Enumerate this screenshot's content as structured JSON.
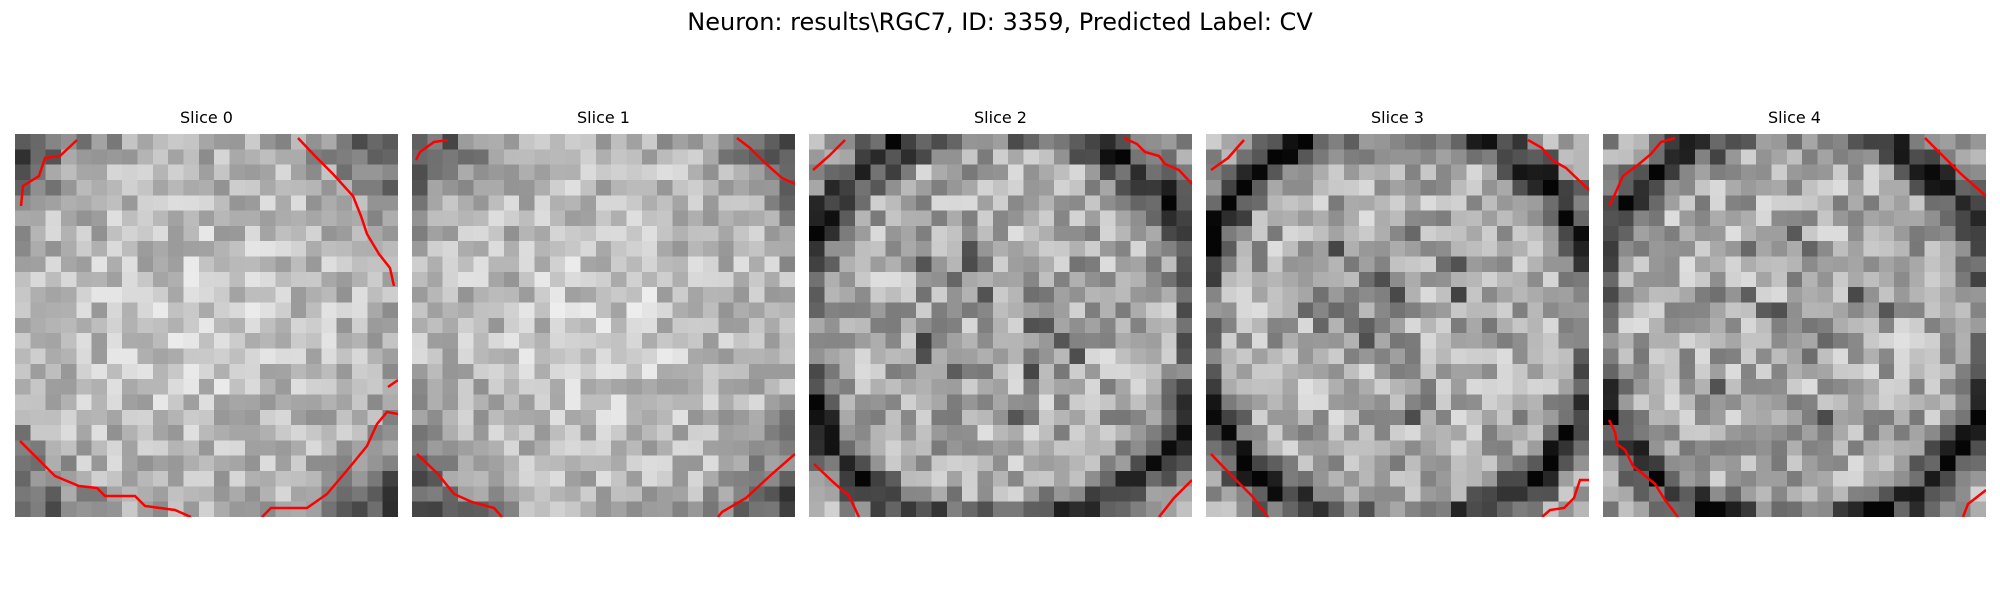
{
  "figure": {
    "title": "Neuron: results\\RGC7, ID: 3359, Predicted Label: CV"
  },
  "colors": {
    "background": "#ffffff",
    "contour": "#ff0000",
    "colormap": "gray"
  },
  "slices": [
    {
      "label": "Slice 0",
      "profile": "bright"
    },
    {
      "label": "Slice 1",
      "profile": "bright"
    },
    {
      "label": "Slice 2",
      "profile": "ring"
    },
    {
      "label": "Slice 3",
      "profile": "ring"
    },
    {
      "label": "Slice 4",
      "profile": "ring"
    }
  ]
}
